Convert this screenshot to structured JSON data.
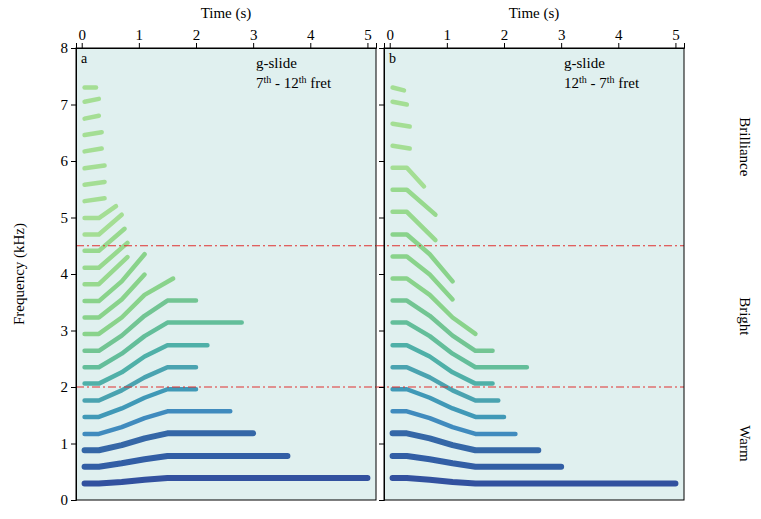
{
  "chart_data": [
    {
      "type": "line",
      "label": "a",
      "annotations": [
        "g-slide",
        "7th - 12th fret"
      ],
      "x_label": "Time (s)",
      "y_label": "Frequency (kHz)",
      "xlim": [
        -0.1,
        5.15
      ],
      "xticks": [
        0,
        1,
        2,
        3,
        4,
        5
      ],
      "ylim": [
        0,
        8
      ],
      "yticks": [
        0,
        1,
        2,
        3,
        4,
        5,
        6,
        7,
        8
      ],
      "reference_lines": [
        2,
        4.5
      ],
      "series": [
        {
          "color": "#1f3f96",
          "x": [
            0.05,
            0.3,
            0.7,
            1.1,
            1.5,
            5.0
          ],
          "values": [
            0.29,
            0.29,
            0.32,
            0.36,
            0.39,
            0.39
          ]
        },
        {
          "color": "#1f4e9c",
          "x": [
            0.05,
            0.3,
            0.7,
            1.1,
            1.5,
            3.6
          ],
          "values": [
            0.59,
            0.59,
            0.65,
            0.72,
            0.78,
            0.78
          ]
        },
        {
          "color": "#22589f",
          "x": [
            0.05,
            0.3,
            0.7,
            1.1,
            1.5,
            3.0
          ],
          "values": [
            0.88,
            0.88,
            0.97,
            1.09,
            1.18,
            1.18
          ]
        },
        {
          "color": "#2f7fb8",
          "x": [
            0.05,
            0.3,
            0.7,
            1.1,
            1.5,
            2.6
          ],
          "values": [
            1.17,
            1.17,
            1.29,
            1.45,
            1.57,
            1.57
          ]
        },
        {
          "color": "#2f8fb0",
          "x": [
            0.05,
            0.3,
            0.7,
            1.1,
            1.5,
            2.0
          ],
          "values": [
            1.47,
            1.47,
            1.62,
            1.81,
            1.96,
            1.96
          ]
        },
        {
          "color": "#3a9aa8",
          "x": [
            0.05,
            0.3,
            0.7,
            1.1,
            1.5,
            2.0
          ],
          "values": [
            1.76,
            1.76,
            1.94,
            2.17,
            2.35,
            2.35
          ]
        },
        {
          "color": "#3fa8a0",
          "x": [
            0.05,
            0.3,
            0.7,
            1.1,
            1.5,
            2.2
          ],
          "values": [
            2.06,
            2.06,
            2.26,
            2.54,
            2.74,
            2.74
          ]
        },
        {
          "color": "#55b890",
          "x": [
            0.05,
            0.3,
            0.7,
            1.1,
            1.5,
            2.8
          ],
          "values": [
            2.35,
            2.35,
            2.59,
            2.9,
            3.14,
            3.14
          ]
        },
        {
          "color": "#66c088",
          "x": [
            0.05,
            0.3,
            0.7,
            1.1,
            1.5,
            2.0
          ],
          "values": [
            2.64,
            2.64,
            2.91,
            3.26,
            3.53,
            3.53
          ]
        },
        {
          "color": "#7fcf7f",
          "x": [
            0.05,
            0.3,
            0.7,
            1.1,
            1.6
          ],
          "values": [
            2.94,
            2.94,
            3.23,
            3.63,
            3.92
          ]
        },
        {
          "color": "#7fcf7f",
          "x": [
            0.05,
            0.3,
            0.7,
            1.1
          ],
          "values": [
            3.23,
            3.23,
            3.55,
            3.99
          ]
        },
        {
          "color": "#7fcf7f",
          "x": [
            0.05,
            0.3,
            0.7,
            1.1
          ],
          "values": [
            3.52,
            3.52,
            3.87,
            4.35
          ]
        },
        {
          "color": "#8fd683",
          "x": [
            0.05,
            0.3,
            0.8
          ],
          "values": [
            3.82,
            3.82,
            4.3
          ]
        },
        {
          "color": "#8fd683",
          "x": [
            0.05,
            0.3,
            0.8
          ],
          "values": [
            4.11,
            4.11,
            4.55
          ]
        },
        {
          "color": "#8fd683",
          "x": [
            0.05,
            0.3,
            0.75
          ],
          "values": [
            4.41,
            4.41,
            4.8
          ]
        },
        {
          "color": "#9ddc8a",
          "x": [
            0.05,
            0.3,
            0.7
          ],
          "values": [
            4.7,
            4.7,
            5.05
          ]
        },
        {
          "color": "#9ddc8a",
          "x": [
            0.05,
            0.3,
            0.6
          ],
          "values": [
            4.99,
            4.99,
            5.2
          ]
        },
        {
          "color": "#9ddc8a",
          "x": [
            0.05,
            0.4
          ],
          "values": [
            5.29,
            5.34
          ]
        },
        {
          "color": "#9ddc8a",
          "x": [
            0.05,
            0.4
          ],
          "values": [
            5.58,
            5.63
          ]
        },
        {
          "color": "#9ddc8a",
          "x": [
            0.05,
            0.4
          ],
          "values": [
            5.87,
            5.92
          ]
        },
        {
          "color": "#9ddc8a",
          "x": [
            0.05,
            0.35
          ],
          "values": [
            6.17,
            6.22
          ]
        },
        {
          "color": "#9ddc8a",
          "x": [
            0.05,
            0.35
          ],
          "values": [
            6.46,
            6.51
          ]
        },
        {
          "color": "#9ddc8a",
          "x": [
            0.05,
            0.3
          ],
          "values": [
            6.75,
            6.8
          ]
        },
        {
          "color": "#9ddc8a",
          "x": [
            0.05,
            0.3
          ],
          "values": [
            7.05,
            7.1
          ]
        },
        {
          "color": "#9ddc8a",
          "x": [
            0.05,
            0.25
          ],
          "values": [
            7.3,
            7.3
          ]
        }
      ]
    },
    {
      "type": "line",
      "label": "b",
      "annotations": [
        "g-slide",
        "12th - 7th fret"
      ],
      "x_label": "Time (s)",
      "tick_labels": "x",
      "xlim": [
        -0.1,
        5.15
      ],
      "xticks": [
        0,
        1,
        2,
        3,
        4,
        5
      ],
      "ylim": [
        0,
        8
      ],
      "yticks": [
        0,
        1,
        2,
        3,
        4,
        5,
        6,
        7,
        8
      ],
      "reference_lines": [
        2,
        4.5
      ],
      "bands": [
        {
          "label": "Brilliance",
          "from": 4.5,
          "to": 8
        },
        {
          "label": "Bright",
          "from": 2,
          "to": 4.5
        },
        {
          "label": "Warm",
          "from": 0,
          "to": 2
        }
      ],
      "series": [
        {
          "color": "#1f3f96",
          "x": [
            0.05,
            0.3,
            0.7,
            1.1,
            1.5,
            5.0
          ],
          "values": [
            0.39,
            0.39,
            0.36,
            0.32,
            0.29,
            0.29
          ]
        },
        {
          "color": "#1f4e9c",
          "x": [
            0.05,
            0.3,
            0.7,
            1.1,
            1.5,
            3.0
          ],
          "values": [
            0.78,
            0.78,
            0.72,
            0.65,
            0.59,
            0.59
          ]
        },
        {
          "color": "#22589f",
          "x": [
            0.05,
            0.3,
            0.7,
            1.1,
            1.5,
            2.6
          ],
          "values": [
            1.18,
            1.18,
            1.09,
            0.97,
            0.88,
            0.88
          ]
        },
        {
          "color": "#2f7fb8",
          "x": [
            0.05,
            0.3,
            0.7,
            1.1,
            1.5,
            2.2
          ],
          "values": [
            1.57,
            1.57,
            1.45,
            1.29,
            1.17,
            1.17
          ]
        },
        {
          "color": "#2f8fb0",
          "x": [
            0.05,
            0.3,
            0.7,
            1.1,
            1.5,
            2.0
          ],
          "values": [
            1.96,
            1.96,
            1.81,
            1.62,
            1.47,
            1.47
          ]
        },
        {
          "color": "#3a9aa8",
          "x": [
            0.05,
            0.3,
            0.7,
            1.1,
            1.5,
            1.9
          ],
          "values": [
            2.35,
            2.35,
            2.17,
            1.94,
            1.76,
            1.76
          ]
        },
        {
          "color": "#3fa8a0",
          "x": [
            0.05,
            0.3,
            0.7,
            1.1,
            1.5,
            1.8
          ],
          "values": [
            2.74,
            2.74,
            2.54,
            2.26,
            2.06,
            2.06
          ]
        },
        {
          "color": "#55b890",
          "x": [
            0.05,
            0.3,
            0.7,
            1.1,
            1.5,
            2.4
          ],
          "values": [
            3.14,
            3.14,
            2.9,
            2.59,
            2.35,
            2.35
          ]
        },
        {
          "color": "#66c088",
          "x": [
            0.05,
            0.3,
            0.7,
            1.1,
            1.5,
            1.8
          ],
          "values": [
            3.53,
            3.53,
            3.26,
            2.91,
            2.64,
            2.64
          ]
        },
        {
          "color": "#7fcf7f",
          "x": [
            0.05,
            0.3,
            0.7,
            1.1,
            1.5
          ],
          "values": [
            3.92,
            3.92,
            3.63,
            3.23,
            2.94
          ]
        },
        {
          "color": "#7fcf7f",
          "x": [
            0.05,
            0.3,
            0.7,
            1.1
          ],
          "values": [
            4.31,
            4.31,
            3.99,
            3.55
          ]
        },
        {
          "color": "#7fcf7f",
          "x": [
            0.05,
            0.3,
            0.7,
            1.1
          ],
          "values": [
            4.7,
            4.7,
            4.35,
            3.87
          ]
        },
        {
          "color": "#8fd683",
          "x": [
            0.05,
            0.3,
            0.8
          ],
          "values": [
            5.1,
            5.1,
            4.6
          ]
        },
        {
          "color": "#8fd683",
          "x": [
            0.05,
            0.3,
            0.8
          ],
          "values": [
            5.49,
            5.49,
            5.05
          ]
        },
        {
          "color": "#9ddc8a",
          "x": [
            0.05,
            0.3,
            0.6
          ],
          "values": [
            5.88,
            5.88,
            5.55
          ]
        },
        {
          "color": "#9ddc8a",
          "x": [
            0.05,
            0.35
          ],
          "values": [
            6.27,
            6.22
          ]
        },
        {
          "color": "#9ddc8a",
          "x": [
            0.05,
            0.35
          ],
          "values": [
            6.66,
            6.61
          ]
        },
        {
          "color": "#9ddc8a",
          "x": [
            0.05,
            0.3
          ],
          "values": [
            7.05,
            7.0
          ]
        },
        {
          "color": "#9ddc8a",
          "x": [
            0.05,
            0.25
          ],
          "values": [
            7.3,
            7.25
          ]
        }
      ]
    }
  ]
}
